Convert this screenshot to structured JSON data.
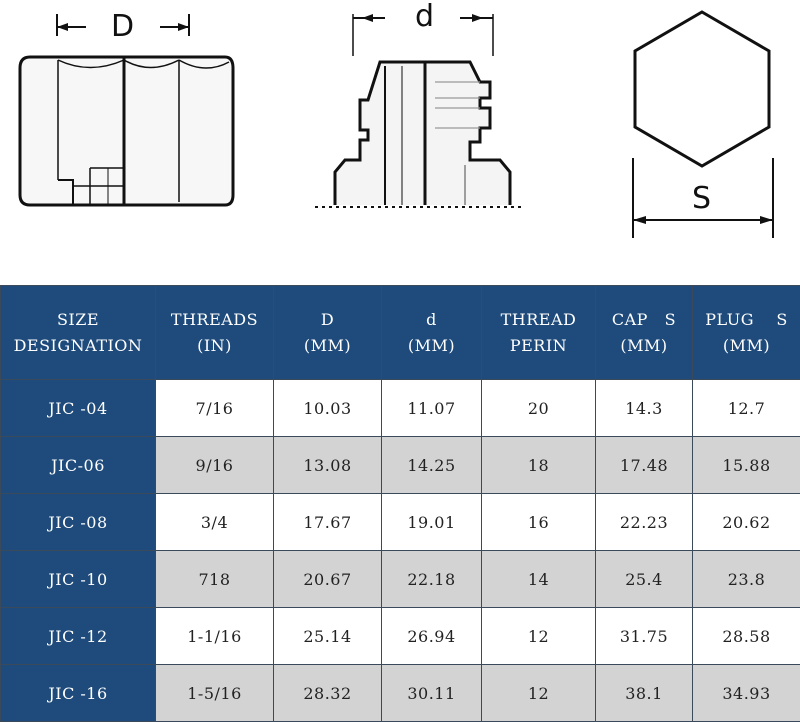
{
  "diagram": {
    "cap_label": "D",
    "plug_label": "d",
    "hex_label": "S"
  },
  "table": {
    "headers": [
      [
        "SIZE",
        "DESIGNATION"
      ],
      [
        "THREADS",
        "(IN)"
      ],
      [
        "D",
        "(MM)"
      ],
      [
        "d",
        "(MM)"
      ],
      [
        "THREAD",
        "PERIN"
      ],
      [
        "CAP   S",
        "(MM)"
      ],
      [
        "PLUG    S",
        "(MM)"
      ]
    ],
    "rows": [
      [
        "JIC -04",
        "7/16",
        "10.03",
        "11.07",
        "20",
        "14.3",
        "12.7"
      ],
      [
        "JIC-06",
        "9/16",
        "13.08",
        "14.25",
        "18",
        "17.48",
        "15.88"
      ],
      [
        "JIC -08",
        "3/4",
        "17.67",
        "19.01",
        "16",
        "22.23",
        "20.62"
      ],
      [
        "JIC -10",
        "718",
        "20.67",
        "22.18",
        "14",
        "25.4",
        "23.8"
      ],
      [
        "JIC -12",
        "1-1/16",
        "25.14",
        "26.94",
        "12",
        "31.75",
        "28.58"
      ],
      [
        "JIC -16",
        "1-5/16",
        "28.32",
        "30.11",
        "12",
        "38.1",
        "34.93"
      ]
    ]
  }
}
